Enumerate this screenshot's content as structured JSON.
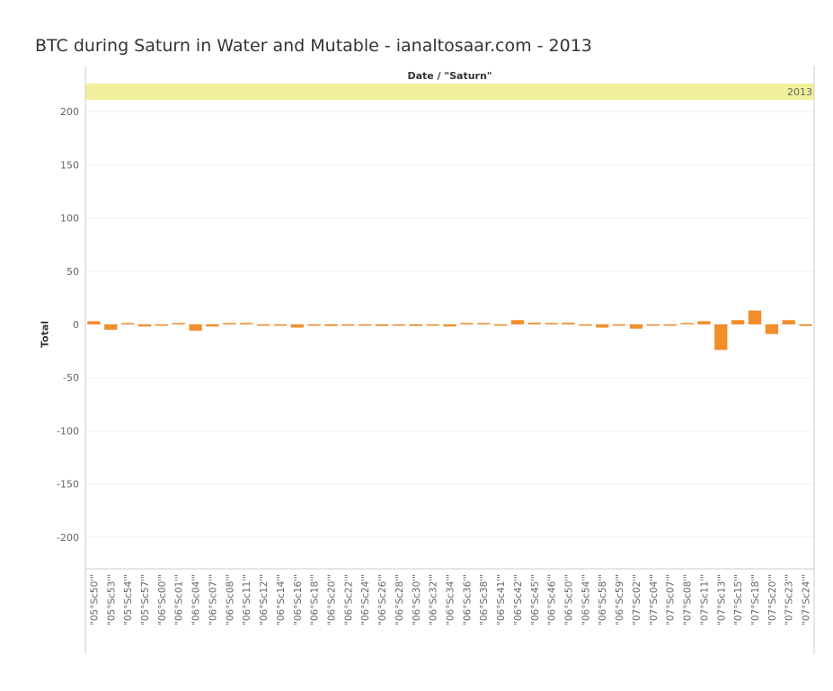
{
  "title": "BTC during Saturn in Water and Mutable - ianaltosaar.com - 2013",
  "header": "Date / \"Saturn\"",
  "colors": {
    "bar": "#f28e2b",
    "band": "#f2f09b",
    "grid": "#efefef",
    "axis": "#cccccc",
    "text": "#666666"
  },
  "chart_data": {
    "type": "bar",
    "title": "BTC during Saturn in Water and Mutable - ianaltosaar.com - 2013",
    "panel_label": "2013",
    "xlabel": "",
    "ylabel": "Total",
    "ylim": [
      -230,
      230
    ],
    "yticks": [
      200,
      150,
      100,
      50,
      0,
      -50,
      -100,
      -150,
      -200
    ],
    "grid": true,
    "categories": [
      "\"05°Sc50'\"",
      "\"05°Sc53'\"",
      "\"05°Sc54'\"",
      "\"05°Sc57'\"",
      "\"06°Sc00'\"",
      "\"06°Sc01'\"",
      "\"06°Sc04'\"",
      "\"06°Sc07'\"",
      "\"06°Sc08'\"",
      "\"06°Sc11'\"",
      "\"06°Sc12'\"",
      "\"06°Sc14'\"",
      "\"06°Sc16'\"",
      "\"06°Sc18'\"",
      "\"06°Sc20'\"",
      "\"06°Sc22'\"",
      "\"06°Sc24'\"",
      "\"06°Sc26'\"",
      "\"06°Sc28'\"",
      "\"06°Sc30'\"",
      "\"06°Sc32'\"",
      "\"06°Sc34'\"",
      "\"06°Sc36'\"",
      "\"06°Sc38'\"",
      "\"06°Sc41'\"",
      "\"06°Sc42'\"",
      "\"06°Sc45'\"",
      "\"06°Sc46'\"",
      "\"06°Sc50'\"",
      "\"06°Sc54'\"",
      "\"06°Sc58'\"",
      "\"06°Sc59'\"",
      "\"07°Sc02'\"",
      "\"07°Sc04'\"",
      "\"07°Sc07'\"",
      "\"07°Sc08'\"",
      "\"07°Sc11'\"",
      "\"07°Sc13'\"",
      "\"07°Sc15'\"",
      "\"07°Sc18'\"",
      "\"07°Sc20'\"",
      "\"07°Sc23'\"",
      "\"07°Sc24'\""
    ],
    "values": [
      3,
      -5,
      0.5,
      -2,
      -0.5,
      0.5,
      -6,
      -2,
      0.5,
      0.5,
      -0.5,
      -0.5,
      -3,
      -0.5,
      -1.5,
      -0.5,
      -0.5,
      -1.5,
      -0.5,
      -1.5,
      -0.5,
      -2,
      0.5,
      0.5,
      -0.5,
      4,
      1.5,
      0.5,
      1.5,
      -0.5,
      -3,
      -0.5,
      -4,
      -0.5,
      -0.5,
      0.5,
      3,
      -24,
      4,
      13,
      -9,
      4,
      -1.5
    ]
  }
}
